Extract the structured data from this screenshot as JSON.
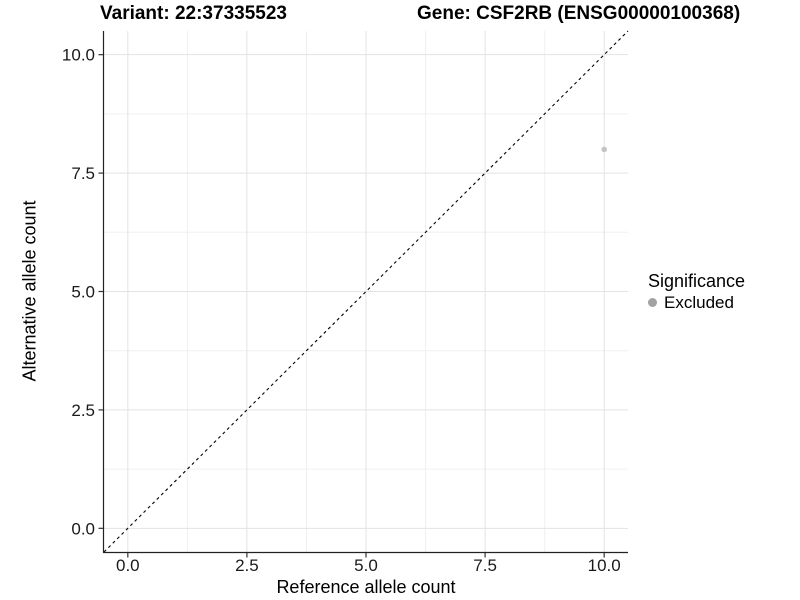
{
  "chart_data": {
    "type": "scatter",
    "title_variant": "Variant: 22:37335523",
    "title_gene": "Gene: CSF2RB (ENSG00000100368)",
    "xlabel": "Reference allele count",
    "ylabel": "Alternative allele count",
    "xlim": [
      -0.5,
      10.5
    ],
    "ylim": [
      -0.5,
      10.5
    ],
    "major_ticks": [
      0,
      2.5,
      5,
      7.5,
      10
    ],
    "tick_labels": [
      "0.0",
      "2.5",
      "5.0",
      "7.5",
      "10.0"
    ],
    "minor_ticks": [
      1.25,
      3.75,
      6.25,
      8.75
    ],
    "grid": true,
    "points": [
      {
        "x": 10,
        "y": 8,
        "series": "Excluded"
      }
    ],
    "reference_line": {
      "style": "dashed",
      "from": [
        -0.5,
        -0.5
      ],
      "to": [
        10.5,
        10.5
      ]
    },
    "legend": {
      "title": "Significance",
      "position": "right",
      "entries": [
        {
          "label": "Excluded",
          "color": "#a2a2a2"
        }
      ]
    },
    "colors": {
      "point": "#c5c5c5",
      "grid_major": "#e3e3e3",
      "grid_minor": "#f0f0f0",
      "axis_line": "#222222",
      "tick_mark": "#333333",
      "tick_text": "#1a1a1a",
      "dashed_line": "#000000",
      "background": "#ffffff"
    }
  }
}
